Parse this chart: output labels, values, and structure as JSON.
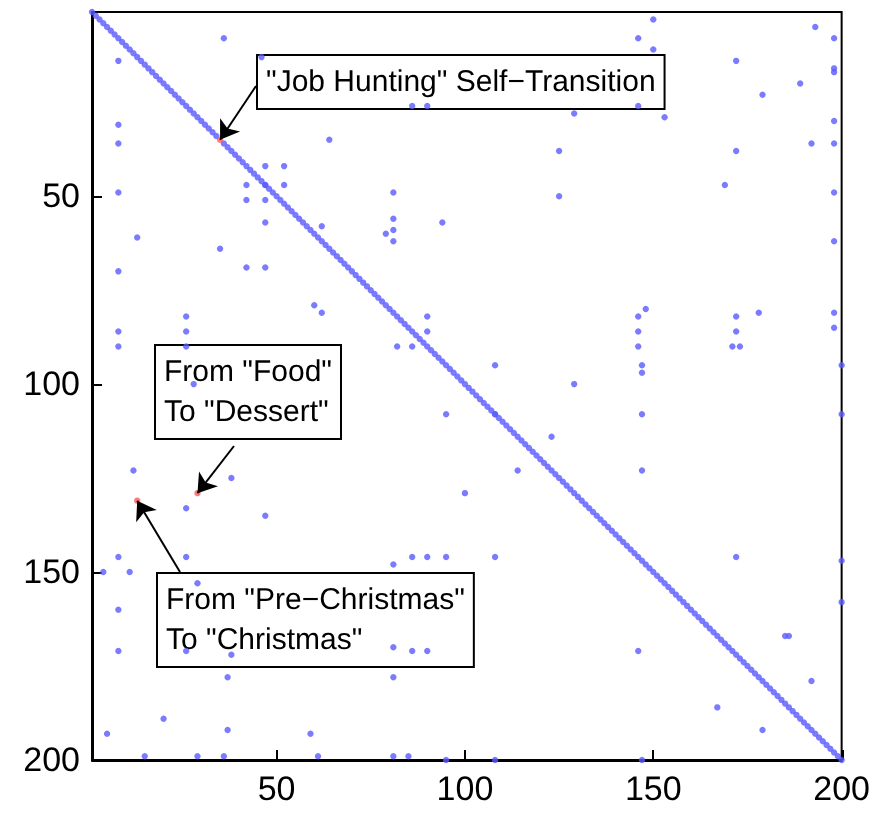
{
  "chart_data": {
    "type": "scatter",
    "marker": "circle",
    "grid": false,
    "xlim": [
      1,
      200
    ],
    "ylim": [
      200,
      1
    ],
    "xticks": [
      50,
      100,
      150,
      200
    ],
    "yticks": [
      50,
      100,
      150,
      200
    ],
    "series": [
      {
        "color": "#5a5aff",
        "x": [
          1,
          2,
          3,
          4,
          5,
          6,
          7,
          8,
          9,
          10,
          11,
          12,
          13,
          14,
          15,
          16,
          17,
          18,
          19,
          20,
          21,
          22,
          23,
          24,
          25,
          26,
          27,
          28,
          29,
          30,
          31,
          32,
          33,
          34,
          36,
          37,
          38,
          39,
          40,
          41,
          42,
          43,
          44,
          45,
          46,
          47,
          48,
          49,
          50,
          51,
          52,
          53,
          54,
          55,
          56,
          57,
          58,
          59,
          60,
          61,
          62,
          63,
          64,
          65,
          66,
          67,
          68,
          69,
          70,
          71,
          72,
          73,
          74,
          75,
          76,
          77,
          78,
          79,
          80,
          81,
          82,
          83,
          84,
          85,
          86,
          87,
          88,
          89,
          90,
          91,
          92,
          93,
          94,
          95,
          96,
          97,
          98,
          99,
          100,
          101,
          102,
          103,
          104,
          105,
          106,
          107,
          108,
          109,
          110,
          111,
          112,
          113,
          114,
          115,
          116,
          117,
          118,
          119,
          120,
          121,
          122,
          123,
          124,
          125,
          126,
          127,
          128,
          129,
          130,
          131,
          132,
          133,
          134,
          135,
          136,
          137,
          138,
          139,
          140,
          141,
          142,
          143,
          144,
          145,
          146,
          147,
          148,
          149,
          150,
          151,
          152,
          153,
          154,
          155,
          156,
          157,
          158,
          159,
          160,
          161,
          162,
          163,
          164,
          165,
          166,
          167,
          168,
          169,
          170,
          171,
          172,
          173,
          174,
          175,
          176,
          177,
          178,
          179,
          180,
          181,
          182,
          183,
          184,
          185,
          186,
          187,
          188,
          189,
          190,
          191,
          192,
          193,
          194,
          195,
          196,
          197,
          198,
          199,
          200
        ],
        "values": [
          1,
          2,
          3,
          4,
          5,
          6,
          7,
          8,
          9,
          10,
          11,
          12,
          13,
          14,
          15,
          16,
          17,
          18,
          19,
          20,
          21,
          22,
          23,
          24,
          25,
          26,
          27,
          28,
          29,
          30,
          31,
          32,
          33,
          34,
          36,
          37,
          38,
          39,
          40,
          41,
          42,
          43,
          44,
          45,
          46,
          47,
          48,
          49,
          50,
          51,
          52,
          53,
          54,
          55,
          56,
          57,
          58,
          59,
          60,
          61,
          62,
          63,
          64,
          65,
          66,
          67,
          68,
          69,
          70,
          71,
          72,
          73,
          74,
          75,
          76,
          77,
          78,
          79,
          80,
          81,
          82,
          83,
          84,
          85,
          86,
          87,
          88,
          89,
          90,
          91,
          92,
          93,
          94,
          95,
          96,
          97,
          98,
          99,
          100,
          101,
          102,
          103,
          104,
          105,
          106,
          107,
          108,
          109,
          110,
          111,
          112,
          113,
          114,
          115,
          116,
          117,
          118,
          119,
          120,
          121,
          122,
          123,
          124,
          125,
          126,
          127,
          128,
          129,
          130,
          131,
          132,
          133,
          134,
          135,
          136,
          137,
          138,
          139,
          140,
          141,
          142,
          143,
          144,
          145,
          146,
          147,
          148,
          149,
          150,
          151,
          152,
          153,
          154,
          155,
          156,
          157,
          158,
          159,
          160,
          161,
          162,
          163,
          164,
          165,
          166,
          167,
          168,
          169,
          170,
          171,
          172,
          173,
          174,
          175,
          176,
          177,
          178,
          179,
          180,
          181,
          182,
          183,
          184,
          185,
          186,
          187,
          188,
          189,
          190,
          191,
          192,
          193,
          194,
          195,
          196,
          197,
          198,
          199,
          200
        ]
      },
      {
        "color": "#5a5aff",
        "x": [
          36,
          8,
          46,
          8,
          8,
          64,
          8,
          47,
          52,
          42,
          47,
          52,
          42,
          47,
          47,
          81,
          81,
          81,
          81,
          79,
          13,
          62,
          35,
          8,
          42,
          47,
          60,
          62,
          26,
          26,
          8,
          8,
          26,
          82,
          86,
          28,
          86,
          90,
          150,
          146,
          150,
          193,
          198,
          198,
          198,
          172,
          189,
          179,
          146,
          129,
          153,
          198,
          192,
          198,
          125,
          172,
          169,
          125,
          198,
          94,
          198,
          90,
          90,
          146,
          148,
          146,
          146,
          147,
          147,
          172,
          172,
          171,
          173,
          178,
          198,
          198,
          200,
          108,
          129,
          95,
          108,
          147,
          12,
          26,
          38,
          47,
          8,
          26,
          4,
          11,
          29,
          8,
          8,
          26,
          38,
          37,
          81,
          86,
          90,
          81,
          81,
          86,
          90,
          5,
          20,
          37,
          59,
          15,
          29,
          36,
          61,
          81,
          85,
          123,
          114,
          147,
          100,
          95,
          108,
          172,
          146,
          185,
          186,
          192,
          167,
          179,
          200,
          200,
          200,
          95,
          108,
          147
        ],
        "values": [
          8,
          14,
          13,
          31,
          36,
          35,
          49,
          42,
          42,
          47,
          47,
          47,
          51,
          51,
          57,
          49,
          56,
          59,
          62,
          60,
          61,
          58,
          64,
          70,
          69,
          69,
          79,
          81,
          82,
          86,
          86,
          90,
          90,
          90,
          90,
          100,
          26,
          26,
          3,
          8,
          11,
          5,
          8,
          16,
          17,
          14,
          20,
          23,
          26,
          28,
          29,
          30,
          36,
          36,
          38,
          38,
          47,
          50,
          49,
          57,
          62,
          82,
          86,
          82,
          80,
          86,
          90,
          95,
          97,
          82,
          86,
          90,
          90,
          81,
          81,
          85,
          95,
          95,
          100,
          108,
          108,
          108,
          123,
          133,
          125,
          135,
          146,
          146,
          150,
          150,
          153,
          160,
          171,
          171,
          172,
          178,
          148,
          146,
          146,
          170,
          178,
          171,
          171,
          193,
          189,
          192,
          193,
          199,
          199,
          199,
          199,
          199,
          199,
          114,
          123,
          123,
          129,
          146,
          146,
          146,
          171,
          167,
          167,
          179,
          186,
          192,
          108,
          147,
          158,
          200,
          200,
          200
        ]
      },
      {
        "color": "#ff5a5a",
        "x": [
          35,
          29,
          13
        ],
        "values": [
          35,
          129,
          131
        ]
      }
    ],
    "annotations": [
      {
        "text": "\"Job Hunting\" Self−Transition",
        "x": 35,
        "y": 35
      },
      {
        "text": "From \"Food\"\nTo \"Dessert\"",
        "x": 29,
        "y": 129
      },
      {
        "text": "From \"Pre−Christmas\"\nTo \"Christmas\"",
        "x": 13,
        "y": 131
      }
    ]
  }
}
